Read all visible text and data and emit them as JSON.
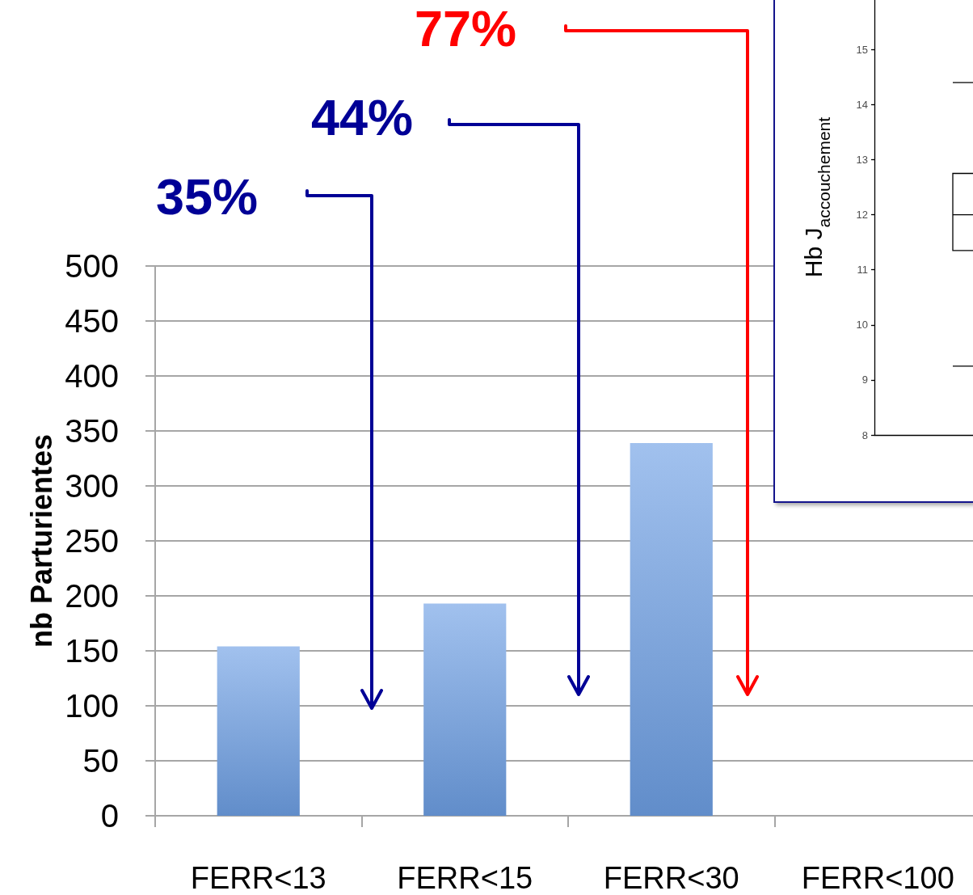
{
  "chart_data": [
    {
      "type": "bar",
      "categories": [
        "FERR<13",
        "FERR<15",
        "FERR<30",
        "FERR<100"
      ],
      "values": [
        154,
        193,
        339,
        null
      ],
      "color": "#6ea0e5",
      "ylabel": "nb Parturientes",
      "ylim": [
        0,
        500
      ],
      "yticks": [
        0,
        50,
        100,
        150,
        200,
        250,
        300,
        350,
        400,
        450,
        500
      ],
      "grid": "y",
      "annotations": [
        "35%",
        "44%",
        "77%"
      ]
    },
    {
      "type": "box",
      "ylabel": "Hb J$_{accouchement}$",
      "categories": [
        null
      ],
      "boxes": [
        {
          "low": 9.25,
          "q1": 11.35,
          "median": 12,
          "q3": 12.75,
          "high": 14.4
        }
      ],
      "ylim": [
        8,
        15.9
      ],
      "yticks": [
        8,
        9,
        10,
        11,
        12,
        13,
        14,
        15
      ]
    }
  ]
}
